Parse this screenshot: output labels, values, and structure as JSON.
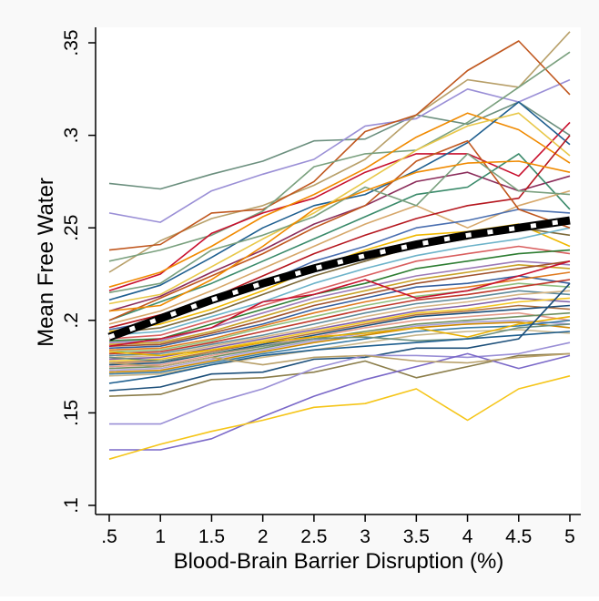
{
  "chart_data": {
    "type": "line",
    "title": "",
    "xlabel": "Blood-Brain Barrier Disruption (%)",
    "ylabel": "Mean Free Water",
    "x": [
      0.5,
      1,
      1.5,
      2,
      2.5,
      3,
      3.5,
      4,
      4.5,
      5
    ],
    "xtick_labels": [
      ".5",
      "1",
      "1.5",
      "2",
      "2.5",
      "3",
      "3.5",
      "4",
      "4.5",
      "5"
    ],
    "ytick_values": [
      0.1,
      0.15,
      0.2,
      0.25,
      0.3,
      0.35
    ],
    "ytick_labels": [
      ".1",
      ".15",
      ".2",
      ".25",
      ".3",
      ".35"
    ],
    "xlim": [
      0.5,
      5
    ],
    "ylim": [
      0.1,
      0.35
    ],
    "grid": false,
    "legend": "none",
    "mean_line": {
      "style": "black-white dashed",
      "values": [
        0.191,
        0.201,
        0.211,
        0.22,
        0.228,
        0.235,
        0.241,
        0.246,
        0.25,
        0.254
      ]
    },
    "series": [
      {
        "color": "#6b8f7e",
        "values": [
          0.274,
          0.271,
          0.279,
          0.286,
          0.297,
          0.298,
          0.311,
          0.306,
          0.318,
          0.3
        ]
      },
      {
        "color": "#9a8fd6",
        "values": [
          0.258,
          0.253,
          0.27,
          0.279,
          0.287,
          0.305,
          0.309,
          0.325,
          0.318,
          0.33
        ]
      },
      {
        "color": "#b8a06a",
        "values": [
          0.226,
          0.243,
          0.255,
          0.262,
          0.273,
          0.287,
          0.311,
          0.33,
          0.326,
          0.356
        ]
      },
      {
        "color": "#c0571e",
        "values": [
          0.238,
          0.241,
          0.258,
          0.26,
          0.275,
          0.302,
          0.311,
          0.335,
          0.351,
          0.322
        ]
      },
      {
        "color": "#7aa07e",
        "values": [
          0.232,
          0.238,
          0.246,
          0.259,
          0.283,
          0.29,
          0.292,
          0.307,
          0.326,
          0.345
        ]
      },
      {
        "color": "#c8102e",
        "values": [
          0.216,
          0.225,
          0.247,
          0.258,
          0.266,
          0.28,
          0.29,
          0.29,
          0.278,
          0.307
        ]
      },
      {
        "color": "#f08a00",
        "values": [
          0.218,
          0.226,
          0.24,
          0.256,
          0.268,
          0.282,
          0.299,
          0.312,
          0.303,
          0.285
        ]
      },
      {
        "color": "#1f5f8f",
        "values": [
          0.211,
          0.219,
          0.234,
          0.25,
          0.262,
          0.268,
          0.281,
          0.296,
          0.318,
          0.295
        ]
      },
      {
        "color": "#e8c84a",
        "values": [
          0.209,
          0.214,
          0.229,
          0.244,
          0.258,
          0.275,
          0.292,
          0.305,
          0.312,
          0.289
        ]
      },
      {
        "color": "#8b2d5b",
        "values": [
          0.205,
          0.213,
          0.226,
          0.238,
          0.252,
          0.262,
          0.275,
          0.28,
          0.27,
          0.278
        ]
      },
      {
        "color": "#3a8a6a",
        "values": [
          0.2,
          0.21,
          0.22,
          0.232,
          0.244,
          0.256,
          0.268,
          0.272,
          0.29,
          0.26
        ]
      },
      {
        "color": "#d6a76a",
        "values": [
          0.198,
          0.205,
          0.216,
          0.228,
          0.24,
          0.252,
          0.262,
          0.25,
          0.262,
          0.27
        ]
      },
      {
        "color": "#b5171f",
        "values": [
          0.196,
          0.203,
          0.212,
          0.224,
          0.236,
          0.246,
          0.255,
          0.262,
          0.266,
          0.3
        ]
      },
      {
        "color": "#4a6fb0",
        "values": [
          0.195,
          0.2,
          0.21,
          0.22,
          0.232,
          0.24,
          0.25,
          0.254,
          0.26,
          0.258
        ]
      },
      {
        "color": "#efb800",
        "values": [
          0.194,
          0.198,
          0.206,
          0.216,
          0.228,
          0.238,
          0.246,
          0.248,
          0.252,
          0.24
        ]
      },
      {
        "color": "#7d6a3a",
        "values": [
          0.193,
          0.196,
          0.204,
          0.214,
          0.224,
          0.232,
          0.24,
          0.244,
          0.25,
          0.246
        ]
      },
      {
        "color": "#6db3c9",
        "values": [
          0.192,
          0.194,
          0.202,
          0.21,
          0.22,
          0.228,
          0.235,
          0.24,
          0.244,
          0.25
        ]
      },
      {
        "color": "#d95f5f",
        "values": [
          0.19,
          0.192,
          0.2,
          0.208,
          0.216,
          0.224,
          0.232,
          0.236,
          0.24,
          0.236
        ]
      },
      {
        "color": "#2e7d32",
        "values": [
          0.189,
          0.19,
          0.198,
          0.206,
          0.214,
          0.22,
          0.228,
          0.232,
          0.236,
          0.238
        ]
      },
      {
        "color": "#9c7bb8",
        "values": [
          0.188,
          0.189,
          0.196,
          0.204,
          0.212,
          0.218,
          0.224,
          0.228,
          0.232,
          0.23
        ]
      },
      {
        "color": "#c9a227",
        "values": [
          0.187,
          0.188,
          0.194,
          0.202,
          0.21,
          0.216,
          0.222,
          0.226,
          0.23,
          0.228
        ]
      },
      {
        "color": "#a0522d",
        "values": [
          0.186,
          0.187,
          0.193,
          0.2,
          0.208,
          0.214,
          0.22,
          0.224,
          0.228,
          0.232
        ]
      },
      {
        "color": "#355f9e",
        "values": [
          0.185,
          0.186,
          0.192,
          0.198,
          0.206,
          0.212,
          0.218,
          0.22,
          0.224,
          0.22
        ]
      },
      {
        "color": "#e07a1f",
        "values": [
          0.184,
          0.185,
          0.19,
          0.197,
          0.204,
          0.21,
          0.215,
          0.218,
          0.222,
          0.226
        ]
      },
      {
        "color": "#8fbf7f",
        "values": [
          0.183,
          0.184,
          0.189,
          0.196,
          0.202,
          0.208,
          0.213,
          0.216,
          0.22,
          0.218
        ]
      },
      {
        "color": "#c0392b",
        "values": [
          0.182,
          0.183,
          0.188,
          0.194,
          0.2,
          0.206,
          0.211,
          0.214,
          0.218,
          0.222
        ]
      },
      {
        "color": "#5e8a9a",
        "values": [
          0.181,
          0.182,
          0.187,
          0.192,
          0.198,
          0.204,
          0.209,
          0.212,
          0.216,
          0.214
        ]
      },
      {
        "color": "#d4b483",
        "values": [
          0.18,
          0.181,
          0.186,
          0.191,
          0.196,
          0.202,
          0.207,
          0.21,
          0.214,
          0.216
        ]
      },
      {
        "color": "#7f5fa8",
        "values": [
          0.179,
          0.18,
          0.185,
          0.19,
          0.195,
          0.2,
          0.205,
          0.208,
          0.212,
          0.21
        ]
      },
      {
        "color": "#f3c623",
        "values": [
          0.178,
          0.179,
          0.184,
          0.189,
          0.194,
          0.199,
          0.204,
          0.206,
          0.21,
          0.212
        ]
      },
      {
        "color": "#b07040",
        "values": [
          0.177,
          0.178,
          0.183,
          0.188,
          0.193,
          0.198,
          0.203,
          0.205,
          0.208,
          0.206
        ]
      },
      {
        "color": "#1c4f7a",
        "values": [
          0.176,
          0.177,
          0.182,
          0.187,
          0.192,
          0.197,
          0.202,
          0.204,
          0.206,
          0.208
        ]
      },
      {
        "color": "#e39a8a",
        "values": [
          0.175,
          0.176,
          0.181,
          0.186,
          0.191,
          0.196,
          0.2,
          0.202,
          0.204,
          0.2
        ]
      },
      {
        "color": "#6f8f5f",
        "values": [
          0.174,
          0.175,
          0.18,
          0.185,
          0.19,
          0.194,
          0.198,
          0.2,
          0.202,
          0.204
        ]
      },
      {
        "color": "#a8a0d8",
        "values": [
          0.173,
          0.174,
          0.179,
          0.184,
          0.189,
          0.193,
          0.197,
          0.199,
          0.2,
          0.198
        ]
      },
      {
        "color": "#cc8800",
        "values": [
          0.172,
          0.173,
          0.178,
          0.183,
          0.188,
          0.192,
          0.196,
          0.198,
          0.199,
          0.196
        ]
      },
      {
        "color": "#3a7ca5",
        "values": [
          0.171,
          0.172,
          0.177,
          0.182,
          0.186,
          0.19,
          0.194,
          0.196,
          0.197,
          0.2
        ]
      },
      {
        "color": "#c9b68a",
        "values": [
          0.17,
          0.171,
          0.176,
          0.18,
          0.184,
          0.188,
          0.192,
          0.194,
          0.195,
          0.193
        ]
      },
      {
        "color": "#6b8f7e",
        "values": [
          0.18,
          0.178,
          0.182,
          0.186,
          0.19,
          0.191,
          0.189,
          0.19,
          0.196,
          0.198
        ]
      },
      {
        "color": "#e8b000",
        "values": [
          0.183,
          0.181,
          0.184,
          0.188,
          0.191,
          0.193,
          0.196,
          0.191,
          0.198,
          0.202
        ]
      },
      {
        "color": "#c8102e",
        "values": [
          0.186,
          0.19,
          0.196,
          0.21,
          0.214,
          0.222,
          0.212,
          0.216,
          0.224,
          0.232
        ]
      },
      {
        "color": "#1f5f8f",
        "values": [
          0.166,
          0.17,
          0.176,
          0.181,
          0.184,
          0.186,
          0.188,
          0.19,
          0.192,
          0.194
        ]
      },
      {
        "color": "#1c4f7a",
        "values": [
          0.162,
          0.164,
          0.171,
          0.172,
          0.179,
          0.18,
          0.185,
          0.185,
          0.19,
          0.22
        ]
      },
      {
        "color": "#8b7d4a",
        "values": [
          0.159,
          0.16,
          0.168,
          0.169,
          0.172,
          0.178,
          0.169,
          0.175,
          0.181,
          0.182
        ]
      },
      {
        "color": "#9a8fd6",
        "values": [
          0.144,
          0.144,
          0.155,
          0.163,
          0.174,
          0.181,
          0.181,
          0.18,
          0.182,
          0.188
        ]
      },
      {
        "color": "#7a68c8",
        "values": [
          0.13,
          0.13,
          0.136,
          0.148,
          0.159,
          0.168,
          0.175,
          0.182,
          0.174,
          0.181
        ]
      },
      {
        "color": "#f5c518",
        "values": [
          0.125,
          0.133,
          0.14,
          0.146,
          0.153,
          0.155,
          0.163,
          0.146,
          0.163,
          0.17
        ]
      },
      {
        "color": "#b8a06a",
        "values": [
          0.177,
          0.175,
          0.18,
          0.176,
          0.18,
          0.181,
          0.178,
          0.177,
          0.18,
          0.182
        ]
      },
      {
        "color": "#c0571e",
        "values": [
          0.2,
          0.212,
          0.224,
          0.236,
          0.25,
          0.262,
          0.286,
          0.297,
          0.26,
          0.25
        ]
      },
      {
        "color": "#7aa07e",
        "values": [
          0.215,
          0.22,
          0.238,
          0.246,
          0.256,
          0.272,
          0.262,
          0.29,
          0.27,
          0.268
        ]
      },
      {
        "color": "#f08a00",
        "values": [
          0.205,
          0.208,
          0.222,
          0.24,
          0.26,
          0.27,
          0.28,
          0.285,
          0.286,
          0.28
        ]
      }
    ]
  }
}
